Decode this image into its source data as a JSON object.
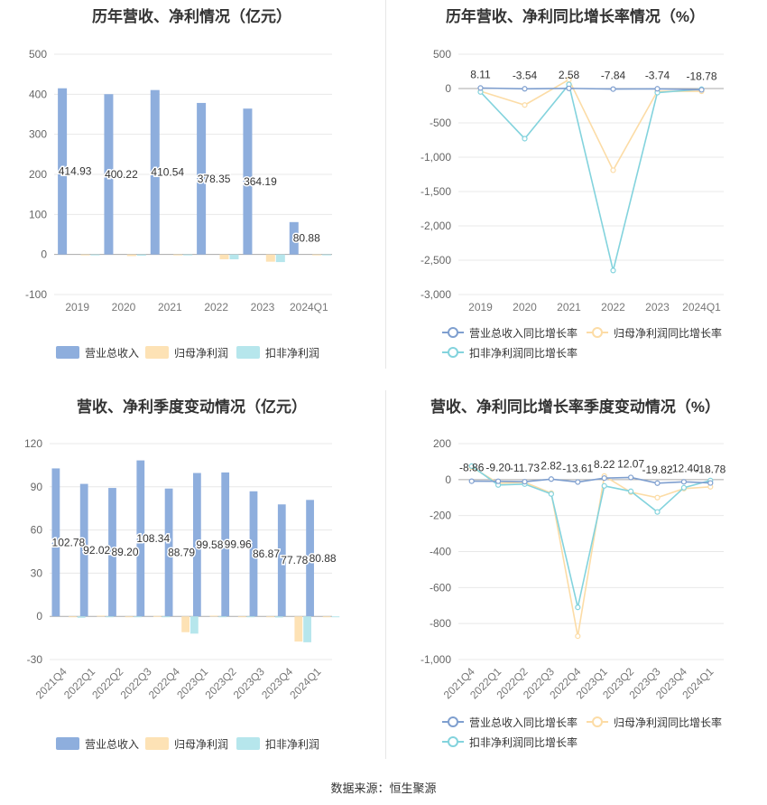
{
  "source_note": "数据来源：恒生聚源",
  "colors": {
    "revenue": "#8eaedd",
    "parent_net": "#fde2b5",
    "deducted_net": "#b6e6ec",
    "revenue_line": "#7f9fcf",
    "parent_line": "#fcdca6",
    "deducted_line": "#83d3dd"
  },
  "chart_data": [
    {
      "type": "bar",
      "title": "历年营收、净利情况（亿元）",
      "categories": [
        "2019",
        "2020",
        "2021",
        "2022",
        "2023",
        "2024Q1"
      ],
      "ylim": [
        -100,
        500
      ],
      "yticks": [
        -100,
        0,
        100,
        200,
        300,
        400,
        500
      ],
      "series": [
        {
          "name": "营业总收入",
          "values": [
            414.93,
            400.22,
            410.54,
            378.35,
            364.19,
            80.88
          ],
          "labels": [
            "414.93",
            "400.22",
            "410.54",
            "378.35",
            "364.19",
            "80.88"
          ]
        },
        {
          "name": "归母净利润",
          "values": [
            -2,
            -4,
            -1,
            -12,
            -18,
            -1
          ]
        },
        {
          "name": "扣非净利润",
          "values": [
            -1,
            -3,
            -1,
            -12,
            -19,
            -1
          ]
        }
      ],
      "legend": "bottom"
    },
    {
      "type": "line",
      "title": "历年营收、净利同比增长率情况（%）",
      "categories": [
        "2019",
        "2020",
        "2021",
        "2022",
        "2023",
        "2024Q1"
      ],
      "ylim": [
        -3000,
        500
      ],
      "yticks": [
        -3000,
        -2500,
        -2000,
        -1500,
        -1000,
        -500,
        0,
        500
      ],
      "series": [
        {
          "name": "营业总收入同比增长率",
          "values": [
            8.11,
            -3.54,
            2.58,
            -7.84,
            -3.74,
            -18.78
          ],
          "labels": [
            "8.11",
            "-3.54",
            "2.58",
            "-7.84",
            "-3.74",
            "-18.78"
          ]
        },
        {
          "name": "归母净利润同比增长率",
          "values": [
            -40,
            -240,
            130,
            -1190,
            -40,
            -40
          ]
        },
        {
          "name": "扣非净利润同比增长率",
          "values": [
            -50,
            -730,
            60,
            -2650,
            -60,
            -10
          ]
        }
      ],
      "legend": "bottom"
    },
    {
      "type": "bar",
      "title": "营收、净利季度变动情况（亿元）",
      "categories": [
        "2021Q4",
        "2022Q1",
        "2022Q2",
        "2022Q3",
        "2022Q4",
        "2023Q1",
        "2023Q2",
        "2023Q3",
        "2023Q4",
        "2024Q1"
      ],
      "ylim": [
        -30,
        120
      ],
      "yticks": [
        -30,
        0,
        30,
        60,
        90,
        120
      ],
      "series": [
        {
          "name": "营业总收入",
          "values": [
            102.78,
            92.02,
            89.2,
            108.34,
            88.79,
            99.58,
            99.96,
            86.87,
            77.78,
            80.88
          ],
          "labels": [
            "102.78",
            "92.02",
            "89.20",
            "108.34",
            "88.79",
            "99.58",
            "99.96",
            "86.87",
            "77.78",
            "80.88"
          ]
        },
        {
          "name": "归母净利润",
          "values": [
            -0.5,
            0.5,
            -0.3,
            0.3,
            -11,
            0.5,
            -0.3,
            -0.5,
            -17.5,
            -0.5
          ]
        },
        {
          "name": "扣非净利润",
          "values": [
            -1,
            -0.5,
            -0.5,
            -0.3,
            -12,
            -0.3,
            -0.5,
            -0.8,
            -18,
            -0.5
          ]
        }
      ],
      "legend": "bottom"
    },
    {
      "type": "line",
      "title": "营收、净利同比增长率季度变动情况（%）",
      "categories": [
        "2021Q4",
        "2022Q1",
        "2022Q2",
        "2022Q3",
        "2022Q4",
        "2023Q1",
        "2023Q2",
        "2023Q3",
        "2023Q4",
        "2024Q1"
      ],
      "ylim": [
        -1000,
        200
      ],
      "yticks": [
        -1000,
        -800,
        -600,
        -400,
        -200,
        0,
        200
      ],
      "series": [
        {
          "name": "营业总收入同比增长率",
          "values": [
            -8.86,
            -9.2,
            -11.73,
            2.82,
            -13.61,
            8.22,
            12.07,
            -19.82,
            -12.4,
            -18.78
          ],
          "labels": [
            "-8.86",
            "-9.20",
            "-11.73",
            "2.82",
            "-13.61",
            "8.22",
            "12.07",
            "-19.82",
            "-12.40",
            "-18.78"
          ]
        },
        {
          "name": "归母净利润同比增长率",
          "values": [
            70,
            -20,
            -15,
            -75,
            -870,
            20,
            -70,
            -100,
            -50,
            -40
          ]
        },
        {
          "name": "扣非净利润同比增长率",
          "values": [
            75,
            -30,
            -25,
            -80,
            -710,
            -35,
            -65,
            -180,
            -45,
            -5
          ]
        }
      ],
      "legend": "bottom"
    }
  ]
}
